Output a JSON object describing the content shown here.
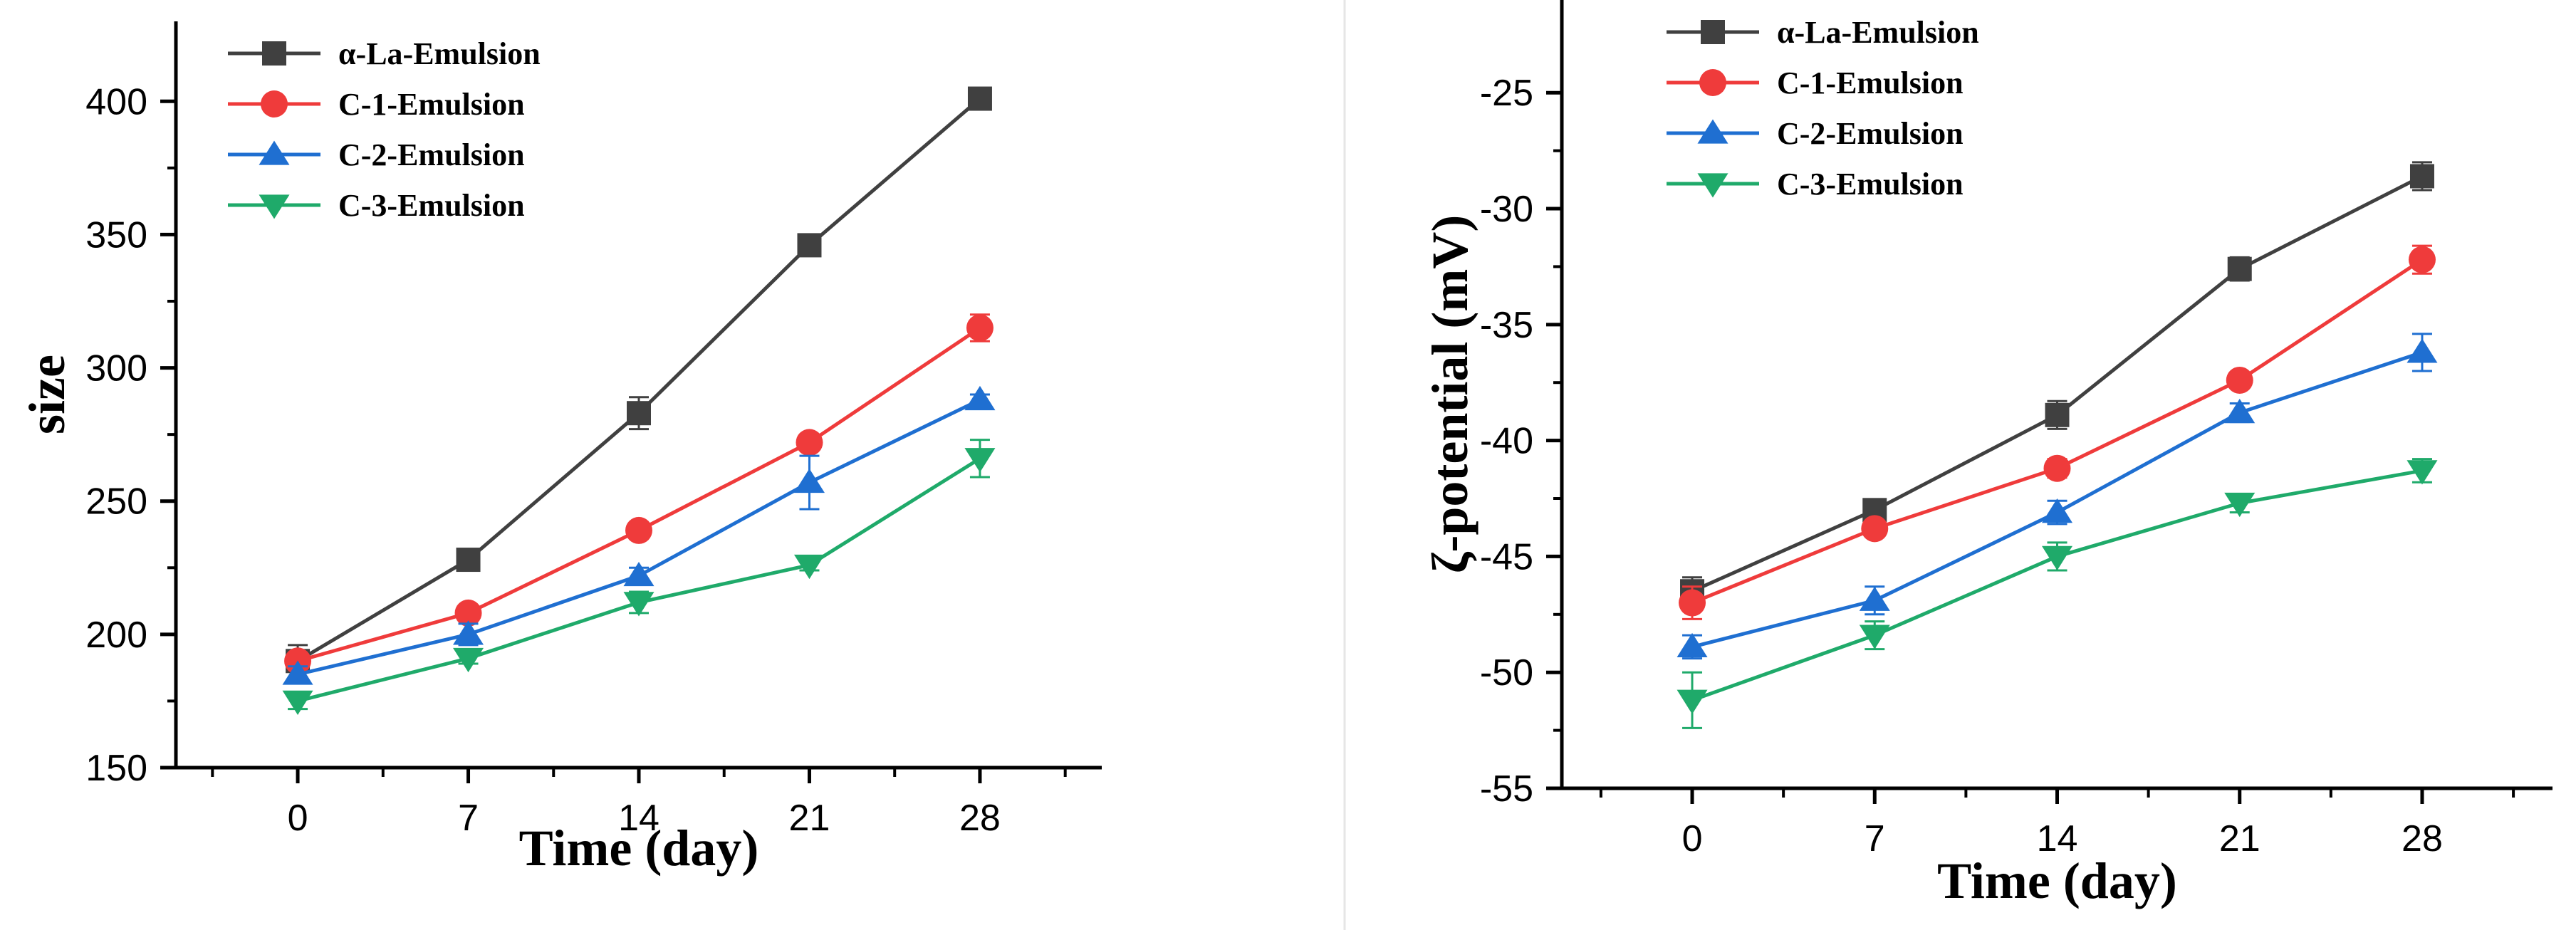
{
  "chart_data": [
    {
      "type": "line",
      "title": "",
      "xlabel": "Time (day)",
      "ylabel": "size",
      "categories": [
        "0",
        "7",
        "14",
        "21",
        "28"
      ],
      "x": [
        0,
        7,
        14,
        21,
        28
      ],
      "xlim": [
        -5,
        33
      ],
      "ylim": [
        150,
        430
      ],
      "yticks": [
        150,
        200,
        250,
        300,
        350,
        400
      ],
      "ytick_labels": [
        "150",
        "200",
        "250",
        "300",
        "350",
        "400"
      ],
      "legend_position": "top-left",
      "series": [
        {
          "name": "α-La-Emulsion",
          "color": "#404040",
          "marker": "square",
          "values": [
            190,
            228,
            283,
            346,
            401
          ],
          "errors": [
            6,
            3,
            6,
            2,
            3
          ]
        },
        {
          "name": "C-1-Emulsion",
          "color": "#ef3b3b",
          "marker": "circle",
          "values": [
            190,
            208,
            239,
            272,
            315
          ],
          "errors": [
            3,
            2,
            3,
            2,
            5
          ]
        },
        {
          "name": "C-2-Emulsion",
          "color": "#1f6fd1",
          "marker": "triangle-up",
          "values": [
            185,
            200,
            222,
            257,
            288
          ],
          "errors": [
            3,
            4,
            3,
            10,
            2
          ]
        },
        {
          "name": "C-3-Emulsion",
          "color": "#1faa6a",
          "marker": "triangle-down",
          "values": [
            175,
            191,
            212,
            226,
            266
          ],
          "errors": [
            3,
            2,
            4,
            2,
            7
          ]
        }
      ]
    },
    {
      "type": "line",
      "title": "",
      "xlabel": "Time (day)",
      "ylabel": "ζ-potential (mV)",
      "categories": [
        "0",
        "7",
        "14",
        "21",
        "28"
      ],
      "x": [
        0,
        7,
        14,
        21,
        28
      ],
      "xlim": [
        -5,
        33
      ],
      "ylim": [
        -55,
        -21
      ],
      "yticks": [
        -55,
        -50,
        -45,
        -40,
        -35,
        -30,
        -25
      ],
      "ytick_labels": [
        "-55",
        "-50",
        "-45",
        "-40",
        "-35",
        "-30",
        "-25"
      ],
      "legend_position": "top-left",
      "series": [
        {
          "name": "α-La-Emulsion",
          "color": "#404040",
          "marker": "square",
          "values": [
            -46.5,
            -43.0,
            -38.9,
            -32.6,
            -28.6
          ],
          "errors": [
            0.6,
            0.4,
            0.6,
            0.5,
            0.6
          ]
        },
        {
          "name": "C-1-Emulsion",
          "color": "#ef3b3b",
          "marker": "circle",
          "values": [
            -47.0,
            -43.8,
            -41.2,
            -37.4,
            -32.2
          ],
          "errors": [
            0.7,
            0.3,
            0.4,
            0.3,
            0.6
          ]
        },
        {
          "name": "C-2-Emulsion",
          "color": "#1f6fd1",
          "marker": "triangle-up",
          "values": [
            -48.9,
            -46.9,
            -43.1,
            -38.8,
            -36.2
          ],
          "errors": [
            0.5,
            0.6,
            0.5,
            0.4,
            0.8
          ]
        },
        {
          "name": "C-3-Emulsion",
          "color": "#1faa6a",
          "marker": "triangle-down",
          "values": [
            -51.2,
            -48.4,
            -45.0,
            -42.7,
            -41.3
          ],
          "errors": [
            1.2,
            0.6,
            0.6,
            0.4,
            0.5
          ]
        }
      ]
    }
  ]
}
